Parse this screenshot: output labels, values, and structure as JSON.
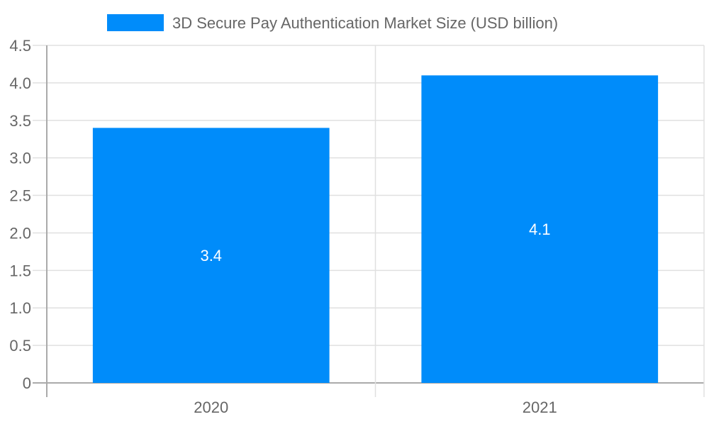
{
  "chart_data": {
    "type": "bar",
    "categories": [
      "2020",
      "2021"
    ],
    "series": [
      {
        "name": "3D Secure Pay Authentication Market Size (USD billion)",
        "values": [
          3.4,
          4.1
        ],
        "color": "#008cfa"
      }
    ],
    "data_labels": [
      "3.4",
      "4.1"
    ],
    "ylim": [
      0,
      4.5
    ],
    "yticks": [
      "0",
      "0.5",
      "1.0",
      "1.5",
      "2.0",
      "2.5",
      "3.0",
      "3.5",
      "4.0",
      "4.5"
    ],
    "xlabel": "",
    "ylabel": "",
    "grid": true,
    "legend_position": "top"
  }
}
